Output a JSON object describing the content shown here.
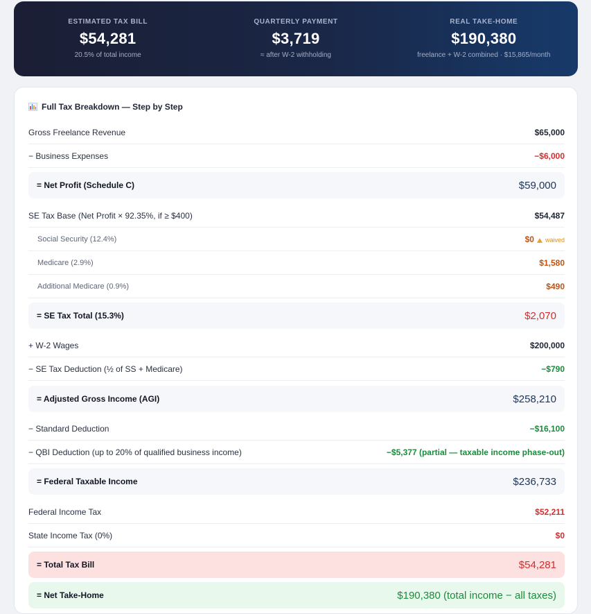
{
  "summary": {
    "tax_bill": {
      "label": "ESTIMATED TAX BILL",
      "value": "$54,281",
      "sub": "20.5% of total income"
    },
    "quarterly": {
      "label": "QUARTERLY PAYMENT",
      "value": "$3,719",
      "sub": "≈ after W-2 withholding"
    },
    "take_home": {
      "label": "REAL TAKE-HOME",
      "value": "$190,380",
      "sub": "freelance + W-2 combined · $15,865/month"
    }
  },
  "breakdown": {
    "title": "Full Tax Breakdown — Step by Step",
    "gross_revenue": {
      "label": "Gross Freelance Revenue",
      "value": "$65,000"
    },
    "business_expenses": {
      "label": "− Business Expenses",
      "value": "−$6,000"
    },
    "net_profit": {
      "label": "= Net Profit (Schedule C)",
      "value": "$59,000"
    },
    "se_tax_base": {
      "label": "SE Tax Base (Net Profit × 92.35%, if ≥ $400)",
      "value": "$54,487"
    },
    "social_security": {
      "label": "Social Security (12.4%)",
      "value": "$0",
      "note": "waived"
    },
    "medicare": {
      "label": "Medicare (2.9%)",
      "value": "$1,580"
    },
    "additional_medicare": {
      "label": "Additional Medicare (0.9%)",
      "value": "$490"
    },
    "se_tax_total": {
      "label": "= SE Tax Total (15.3%)",
      "value": "$2,070"
    },
    "w2_wages": {
      "label": "+ W-2 Wages",
      "value": "$200,000"
    },
    "se_tax_deduction": {
      "label": "− SE Tax Deduction (½ of SS + Medicare)",
      "value": "−$790"
    },
    "agi": {
      "label": "= Adjusted Gross Income (AGI)",
      "value": "$258,210"
    },
    "standard_deduction": {
      "label": "− Standard Deduction",
      "value": "−$16,100"
    },
    "qbi_deduction": {
      "label": "− QBI Deduction (up to 20% of qualified business income)",
      "value": "−$5,377 (partial — taxable income phase-out)"
    },
    "federal_taxable": {
      "label": "= Federal Taxable Income",
      "value": "$236,733"
    },
    "federal_income_tax": {
      "label": "Federal Income Tax",
      "value": "$52,211"
    },
    "state_income_tax": {
      "label": "State Income Tax (0%)",
      "value": "$0"
    },
    "total_tax_bill": {
      "label": "= Total Tax Bill",
      "value": "$54,281"
    },
    "net_take_home": {
      "label": "= Net Take-Home",
      "value": "$190,380 (total income − all taxes)"
    }
  },
  "colors": {
    "red": "#d42c2c",
    "green": "#1d8a3d",
    "orange": "#c2520f",
    "navy": "#1c3557"
  },
  "icons": {
    "title_icon": "bar-chart-icon",
    "warning_icon": "warning-icon"
  }
}
